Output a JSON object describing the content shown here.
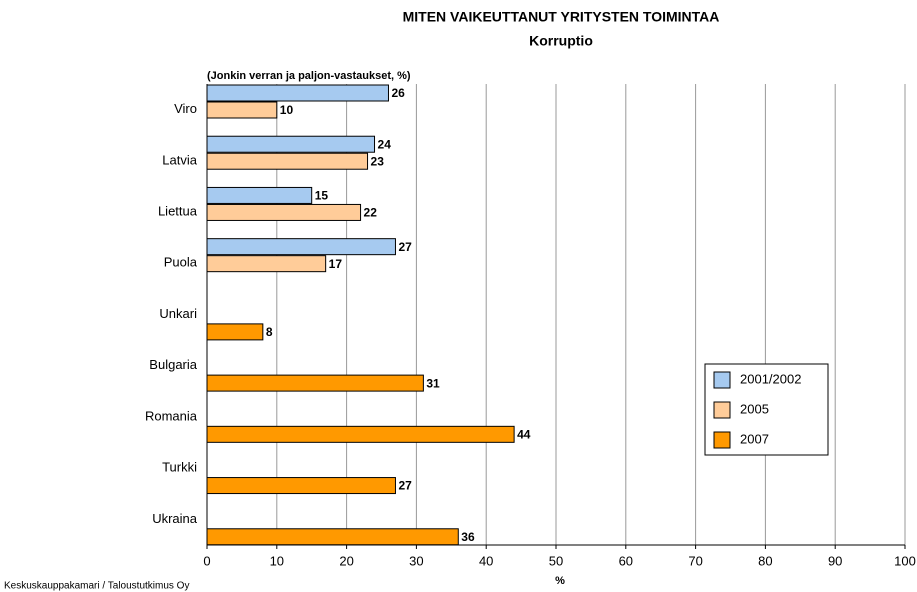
{
  "chart_data": {
    "type": "bar",
    "orientation": "horizontal",
    "title": "MITEN VAIKEUTTANUT YRITYSTEN TOIMINTAA",
    "subtitle": "Korruptio",
    "annotation": "(Jonkin verran ja paljon-vastaukset, %)",
    "x_label": "%",
    "source": "Keskuskauppakamari / Taloustutkimus Oy",
    "categories": [
      "Viro",
      "Latvia",
      "Liettua",
      "Puola",
      "Unkari",
      "Bulgaria",
      "Romania",
      "Turkki",
      "Ukraina"
    ],
    "series": [
      {
        "name": "2001/2002",
        "color": "#a6caf0",
        "values": [
          26,
          24,
          15,
          27,
          null,
          null,
          null,
          null,
          null
        ]
      },
      {
        "name": "2005",
        "color": "#ffcc99",
        "values": [
          10,
          23,
          22,
          17,
          null,
          null,
          null,
          null,
          null
        ]
      },
      {
        "name": "2007",
        "color": "#ff9900",
        "values": [
          null,
          null,
          null,
          null,
          8,
          31,
          44,
          27,
          36
        ]
      }
    ],
    "xlim": [
      0,
      100
    ],
    "xticks": [
      0,
      10,
      20,
      30,
      40,
      50,
      60,
      70,
      80,
      90,
      100
    ],
    "grid": true
  }
}
